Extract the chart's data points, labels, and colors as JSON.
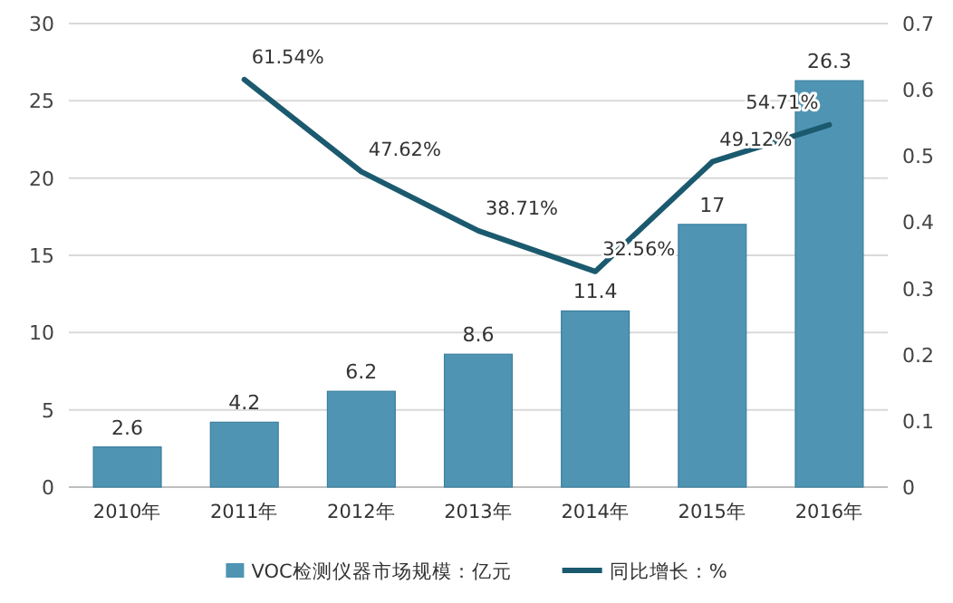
{
  "chart_data": {
    "type": "bar",
    "categories": [
      "2010年",
      "2011年",
      "2012年",
      "2013年",
      "2014年",
      "2015年",
      "2016年"
    ],
    "series": [
      {
        "name": "VOC检测仪器市场规模：亿元",
        "color": "#4f94b3",
        "values": [
          2.6,
          4.2,
          6.2,
          8.6,
          11.4,
          17,
          26.3
        ],
        "value_labels": [
          "2.6",
          "4.2",
          "6.2",
          "8.6",
          "11.4",
          "17",
          "26.3"
        ]
      },
      {
        "name": "同比增长：%",
        "type": "line",
        "axis": "y2",
        "color": "#1b5a6e",
        "values": [
          null,
          0.6154,
          0.4762,
          0.3871,
          0.3256,
          0.4912,
          0.5471
        ],
        "value_labels": [
          null,
          "61.54%",
          "47.62%",
          "38.71%",
          "32.56%",
          "49.12%",
          "54.71%"
        ]
      }
    ],
    "ylim": [
      0,
      30
    ],
    "yticks": [
      0,
      5,
      10,
      15,
      20,
      25,
      30
    ],
    "y2lim": [
      0,
      0.7
    ],
    "y2ticks": [
      0,
      0.1,
      0.2,
      0.3,
      0.4,
      0.5,
      0.6,
      0.7
    ],
    "grid": "y",
    "legend": "bottom"
  }
}
